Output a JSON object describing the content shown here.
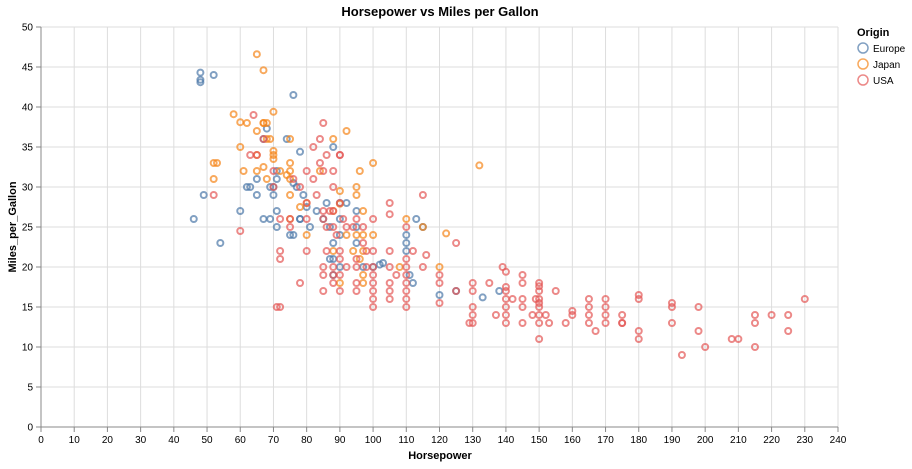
{
  "chart_data": {
    "type": "scatter",
    "title": "Horsepower vs Miles per Gallon",
    "xlabel": "Horsepower",
    "ylabel": "Miles_per_Gallon",
    "xlim": [
      0,
      240
    ],
    "ylim": [
      0,
      50
    ],
    "xticks": [
      0,
      10,
      20,
      30,
      40,
      50,
      60,
      70,
      80,
      90,
      100,
      110,
      120,
      130,
      140,
      150,
      160,
      170,
      180,
      190,
      200,
      210,
      220,
      230,
      240
    ],
    "yticks": [
      0,
      5,
      10,
      15,
      20,
      25,
      30,
      35,
      40,
      45,
      50
    ],
    "grid": true,
    "legend": {
      "title": "Origin",
      "placement": "top-right"
    },
    "series": [
      {
        "name": "Europe",
        "color": "#4c78a8",
        "points": [
          [
            46,
            26
          ],
          [
            48,
            43.4
          ],
          [
            48,
            44.3
          ],
          [
            48,
            43.1
          ],
          [
            52,
            44
          ],
          [
            49,
            29
          ],
          [
            54,
            23
          ],
          [
            60,
            27
          ],
          [
            62,
            30
          ],
          [
            67,
            36
          ],
          [
            65,
            31
          ],
          [
            68,
            37.3
          ],
          [
            69,
            26
          ],
          [
            70,
            30
          ],
          [
            70,
            29
          ],
          [
            71,
            25
          ],
          [
            71,
            27
          ],
          [
            71,
            32
          ],
          [
            74,
            36
          ],
          [
            75,
            24
          ],
          [
            76,
            41.5
          ],
          [
            76,
            30.5
          ],
          [
            77,
            30
          ],
          [
            78,
            34.4
          ],
          [
            78,
            26
          ],
          [
            79,
            29
          ],
          [
            80,
            27.5
          ],
          [
            81,
            25
          ],
          [
            83,
            27
          ],
          [
            85,
            26
          ],
          [
            86,
            28
          ],
          [
            87,
            21
          ],
          [
            87,
            25
          ],
          [
            88,
            35
          ],
          [
            88,
            23
          ],
          [
            90,
            28
          ],
          [
            90,
            20
          ],
          [
            90,
            24
          ],
          [
            92,
            28
          ],
          [
            95,
            23
          ],
          [
            95,
            25
          ],
          [
            97,
            20
          ],
          [
            100,
            20
          ],
          [
            102,
            20.3
          ],
          [
            103,
            20.5
          ],
          [
            110,
            24
          ],
          [
            110,
            23
          ],
          [
            111,
            19
          ],
          [
            112,
            18
          ],
          [
            113,
            26
          ],
          [
            115,
            25
          ],
          [
            120,
            16.5
          ],
          [
            125,
            17
          ],
          [
            133,
            16.2
          ],
          [
            138,
            17
          ],
          [
            76,
            24
          ],
          [
            67,
            26
          ],
          [
            69,
            30
          ],
          [
            63,
            30
          ],
          [
            65,
            29
          ],
          [
            78,
            26
          ],
          [
            88,
            19
          ],
          [
            90,
            26
          ],
          [
            95,
            27
          ],
          [
            71,
            31
          ],
          [
            110,
            22
          ],
          [
            88,
            21
          ]
        ]
      },
      {
        "name": "Japan",
        "color": "#f58518",
        "points": [
          [
            65,
            46.6
          ],
          [
            67,
            44.6
          ],
          [
            70,
            39.4
          ],
          [
            58,
            39.1
          ],
          [
            60,
            38.1
          ],
          [
            62,
            38
          ],
          [
            65,
            37
          ],
          [
            67,
            38
          ],
          [
            68,
            38
          ],
          [
            69,
            36
          ],
          [
            70,
            34.5
          ],
          [
            72,
            32
          ],
          [
            75,
            33
          ],
          [
            75,
            36
          ],
          [
            60,
            35
          ],
          [
            61,
            32
          ],
          [
            52,
            33
          ],
          [
            53,
            33
          ],
          [
            52,
            31
          ],
          [
            65,
            32
          ],
          [
            67,
            32.5
          ],
          [
            68,
            31
          ],
          [
            70,
            34
          ],
          [
            74,
            31.5
          ],
          [
            75,
            31
          ],
          [
            75,
            29
          ],
          [
            75,
            26
          ],
          [
            78,
            27.5
          ],
          [
            80,
            28
          ],
          [
            84,
            32
          ],
          [
            88,
            36
          ],
          [
            90,
            29.5
          ],
          [
            92,
            37
          ],
          [
            97,
            24
          ],
          [
            97,
            27
          ],
          [
            95,
            30
          ],
          [
            96,
            32
          ],
          [
            97,
            22
          ],
          [
            100,
            33
          ],
          [
            100,
            24
          ],
          [
            110,
            26
          ],
          [
            115,
            25
          ],
          [
            122,
            24.2
          ],
          [
            132,
            32.7
          ],
          [
            88,
            27
          ],
          [
            90,
            27.9
          ],
          [
            95,
            24
          ],
          [
            96,
            21
          ],
          [
            97,
            18
          ],
          [
            97,
            19
          ],
          [
            120,
            20
          ],
          [
            65,
            34
          ],
          [
            68,
            36
          ],
          [
            70,
            33.5
          ],
          [
            88,
            22
          ],
          [
            94,
            22
          ],
          [
            75,
            32
          ],
          [
            67,
            38
          ],
          [
            80,
            24
          ],
          [
            92,
            24
          ],
          [
            95,
            29
          ],
          [
            90,
            18
          ],
          [
            108,
            20
          ]
        ]
      },
      {
        "name": "USA",
        "color": "#e45756",
        "points": [
          [
            60,
            24.5
          ],
          [
            52,
            29
          ],
          [
            63,
            34
          ],
          [
            64,
            39
          ],
          [
            65,
            34
          ],
          [
            67,
            36
          ],
          [
            70,
            32
          ],
          [
            70,
            30
          ],
          [
            71,
            15
          ],
          [
            72,
            21
          ],
          [
            72,
            22
          ],
          [
            72,
            26
          ],
          [
            75,
            26
          ],
          [
            76,
            31
          ],
          [
            78,
            18
          ],
          [
            80,
            22
          ],
          [
            80,
            28
          ],
          [
            82,
            31
          ],
          [
            84,
            36
          ],
          [
            85,
            38
          ],
          [
            85,
            32
          ],
          [
            85,
            26
          ],
          [
            85,
            20
          ],
          [
            85,
            19
          ],
          [
            85,
            17
          ],
          [
            86,
            22
          ],
          [
            88,
            30
          ],
          [
            88,
            27
          ],
          [
            88,
            25
          ],
          [
            88,
            20
          ],
          [
            88,
            18
          ],
          [
            90,
            34
          ],
          [
            90,
            28
          ],
          [
            90,
            22
          ],
          [
            90,
            21
          ],
          [
            90,
            19
          ],
          [
            90,
            17
          ],
          [
            91,
            26
          ],
          [
            92,
            25
          ],
          [
            95,
            20
          ],
          [
            95,
            18
          ],
          [
            95,
            17
          ],
          [
            97,
            23
          ],
          [
            98,
            20
          ],
          [
            100,
            19
          ],
          [
            100,
            18
          ],
          [
            100,
            17
          ],
          [
            100,
            16
          ],
          [
            100,
            15
          ],
          [
            100,
            22
          ],
          [
            100,
            20
          ],
          [
            105,
            22
          ],
          [
            105,
            20
          ],
          [
            105,
            18
          ],
          [
            105,
            17
          ],
          [
            105,
            16
          ],
          [
            105,
            26.6
          ],
          [
            105,
            28
          ],
          [
            107,
            19
          ],
          [
            110,
            15
          ],
          [
            110,
            17
          ],
          [
            110,
            18
          ],
          [
            110,
            16
          ],
          [
            110,
            19
          ],
          [
            110,
            20
          ],
          [
            110,
            25
          ],
          [
            112,
            22
          ],
          [
            115,
            29
          ],
          [
            115,
            20
          ],
          [
            116,
            21.5
          ],
          [
            120,
            15.5
          ],
          [
            120,
            18
          ],
          [
            125,
            23
          ],
          [
            129,
            13
          ],
          [
            130,
            14
          ],
          [
            130,
            17
          ],
          [
            130,
            18
          ],
          [
            130,
            13
          ],
          [
            135,
            18
          ],
          [
            137,
            14
          ],
          [
            139,
            20
          ],
          [
            140,
            13
          ],
          [
            140,
            14
          ],
          [
            140,
            15
          ],
          [
            140,
            17
          ],
          [
            140,
            17.5
          ],
          [
            140,
            19.4
          ],
          [
            142,
            16
          ],
          [
            145,
            13
          ],
          [
            145,
            15
          ],
          [
            145,
            18
          ],
          [
            145,
            19
          ],
          [
            148,
            14
          ],
          [
            149,
            16
          ],
          [
            150,
            13
          ],
          [
            150,
            14
          ],
          [
            150,
            15
          ],
          [
            150,
            16
          ],
          [
            150,
            17
          ],
          [
            150,
            18
          ],
          [
            150,
            11
          ],
          [
            150,
            17.6
          ],
          [
            152,
            14
          ],
          [
            153,
            13
          ],
          [
            155,
            17
          ],
          [
            158,
            13
          ],
          [
            160,
            14
          ],
          [
            165,
            13
          ],
          [
            165,
            15
          ],
          [
            165,
            14
          ],
          [
            167,
            12
          ],
          [
            170,
            13
          ],
          [
            170,
            16
          ],
          [
            170,
            15
          ],
          [
            175,
            14
          ],
          [
            175,
            13
          ],
          [
            180,
            12
          ],
          [
            180,
            16.5
          ],
          [
            180,
            11
          ],
          [
            180,
            16
          ],
          [
            190,
            13
          ],
          [
            190,
            15
          ],
          [
            190,
            15.5
          ],
          [
            193,
            9
          ],
          [
            198,
            15
          ],
          [
            198,
            12
          ],
          [
            200,
            10
          ],
          [
            208,
            11
          ],
          [
            210,
            11
          ],
          [
            215,
            14
          ],
          [
            215,
            13
          ],
          [
            215,
            10
          ],
          [
            220,
            14
          ],
          [
            225,
            12
          ],
          [
            225,
            14
          ],
          [
            230,
            16
          ],
          [
            72,
            15
          ],
          [
            75,
            25
          ],
          [
            80,
            26
          ],
          [
            83,
            29
          ],
          [
            86,
            25
          ],
          [
            87,
            27
          ],
          [
            89,
            24
          ],
          [
            94,
            25
          ],
          [
            95,
            26
          ],
          [
            97,
            25
          ],
          [
            100,
            26
          ],
          [
            88,
            32
          ],
          [
            86,
            34
          ],
          [
            90,
            34
          ],
          [
            78,
            30
          ],
          [
            80,
            32
          ],
          [
            82,
            35
          ],
          [
            84,
            33
          ],
          [
            85,
            27
          ],
          [
            88,
            19
          ],
          [
            92,
            20
          ],
          [
            95,
            21
          ],
          [
            98,
            22
          ],
          [
            110,
            21
          ],
          [
            120,
            19
          ],
          [
            125,
            17
          ],
          [
            145,
            16
          ],
          [
            165,
            16
          ],
          [
            175,
            13
          ],
          [
            170,
            14
          ],
          [
            130,
            15
          ],
          [
            140,
            16
          ],
          [
            150,
            15.5
          ],
          [
            160,
            14.5
          ]
        ]
      }
    ]
  }
}
